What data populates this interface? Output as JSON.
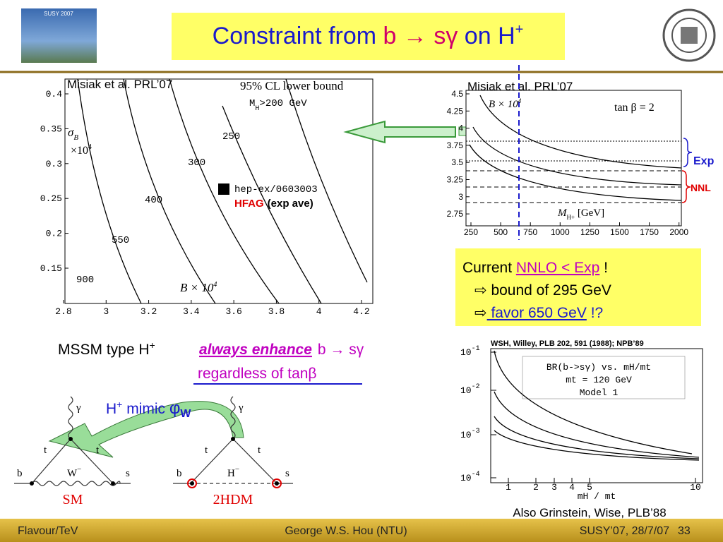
{
  "header": {
    "logo_text": "SUSY 2007",
    "title": {
      "lead": "Constraint from ",
      "b": "b",
      "arrow": " → ",
      "sg": "sγ",
      "on": " on ",
      "H": "H",
      "plus": "+"
    }
  },
  "left_plot": {
    "citation": "Misiak et al. PRL’07",
    "legend_title": "95% CL lower bound",
    "mass_cut": "M",
    "mass_sub": "H",
    "mass_rest": ">200 GeV",
    "y_label": "σ",
    "y_label_sub": "B",
    "y_scale": "×10",
    "y_scale_exp": "4",
    "x_label": "B × 10",
    "x_label_exp": "4",
    "contours": [
      "250",
      "300",
      "400",
      "550",
      "900"
    ],
    "point_ref": "hep-ex/0603003",
    "point_src": "HFAG",
    "point_note": "(exp ave)",
    "xticks": [
      "2.8",
      "3",
      "3.2",
      "3.4",
      "3.6",
      "3.8",
      "4",
      "4.2"
    ],
    "yticks": [
      "0.4",
      "0.35",
      "0.3",
      "0.25",
      "0.2",
      "0.15"
    ]
  },
  "right_plot": {
    "citation": "Misiak et al. PRL’07",
    "y_label": "B × 10",
    "y_label_exp": "4",
    "tan_beta": "tan β = 2",
    "x_label": "M",
    "x_label_sub": "H+",
    "x_label_rest": " [GeV]",
    "exp_label": "Exp",
    "nnl_label": "NNL",
    "xticks": [
      "250",
      "500",
      "750",
      "1000",
      "1250",
      "1500",
      "1750",
      "2000"
    ],
    "yticks": [
      "4.5",
      "4.25",
      "4",
      "3.75",
      "3.5",
      "3.25",
      "3",
      "2.75"
    ]
  },
  "summary": {
    "line1": {
      "lead": "Current ",
      "key": "NNLO  <  Exp",
      "tail": " !"
    },
    "line2": {
      "arrow": "⇨",
      "text": " bound of 295 GeV"
    },
    "line3": {
      "arrow": "⇨",
      "key": " favor 650 GeV",
      "tail": " !?"
    }
  },
  "mssm": {
    "lead": "MSSM type H",
    "plus": "+",
    "key": "always enhance",
    "process": "b → sγ",
    "note": "regardless of tanβ"
  },
  "diagrams": {
    "mimic": {
      "lead": "H",
      "plus": "+",
      "text": " mimic ",
      "phi": "φ",
      "sub": "W"
    },
    "photon": "γ",
    "top": "t",
    "bottom": "b",
    "strange": "s",
    "w_boson": "W",
    "w_charge": "−",
    "higgs": "H",
    "h_charge": "−",
    "sm": "SM",
    "thdm": "2HDM"
  },
  "lower_plot": {
    "citation": "WSH, Willey, PLB 202, 591 (1988); NPB’89",
    "box_lines": [
      "BR(b->sγ) vs. mH/mt",
      "mt = 120 GeV",
      "Model 1"
    ],
    "x_label": "mH / mt",
    "yticks": [
      {
        "base": "10",
        "exp": "-1"
      },
      {
        "base": "10",
        "exp": "-2"
      },
      {
        "base": "10",
        "exp": "-3"
      },
      {
        "base": "10",
        "exp": "-4"
      }
    ],
    "xticks": [
      "1",
      "2",
      "3",
      "4",
      "5",
      "10"
    ],
    "also": "Also Grinstein, Wise, PLB’88"
  },
  "footer": {
    "left": "Flavour/TeV",
    "center": "George W.S. Hou (NTU)",
    "right": "SUSY’07, 28/7/07",
    "page": "33"
  }
}
